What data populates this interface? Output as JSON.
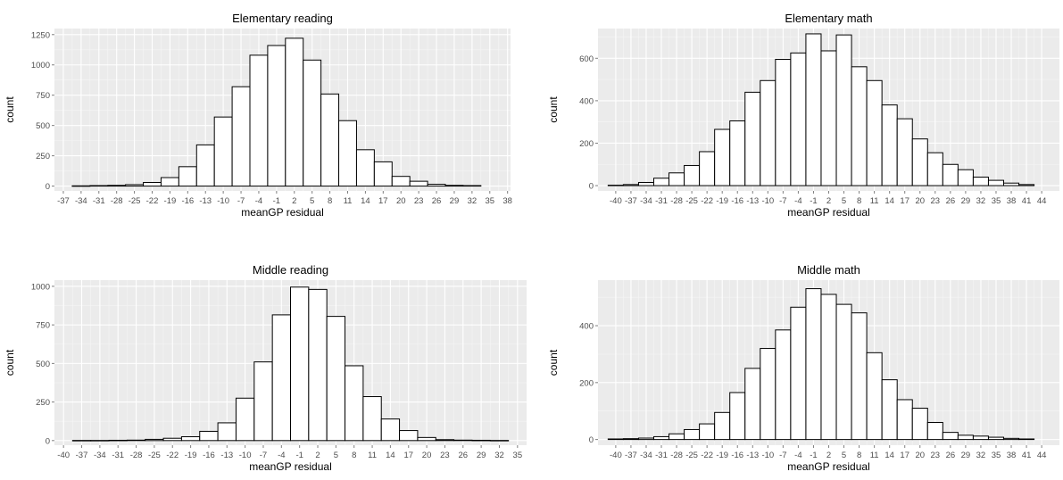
{
  "chart_data": [
    {
      "type": "bar",
      "title": "Elementary reading",
      "xlabel": "meanGP residual",
      "ylabel": "count",
      "xlim": [
        -38.5,
        38.5
      ],
      "ylim": [
        -40,
        1300
      ],
      "bin_width": 3,
      "yticks": [
        0,
        250,
        500,
        750,
        1000,
        1250
      ],
      "xticks": [
        -37,
        -34,
        -31,
        -28,
        -25,
        -22,
        -19,
        -16,
        -13,
        -10,
        -7,
        -4,
        -1,
        2,
        5,
        8,
        11,
        14,
        17,
        20,
        23,
        26,
        29,
        32,
        35,
        38
      ],
      "x": [
        -34,
        -31,
        -28,
        -25,
        -22,
        -19,
        -16,
        -13,
        -10,
        -7,
        -4,
        -1,
        2,
        5,
        8,
        11,
        14,
        17,
        20,
        23,
        26,
        29,
        32
      ],
      "values": [
        2,
        4,
        6,
        12,
        30,
        70,
        160,
        340,
        570,
        820,
        1080,
        1160,
        1220,
        1040,
        760,
        540,
        300,
        200,
        80,
        40,
        15,
        6,
        4
      ]
    },
    {
      "type": "bar",
      "title": "Elementary math",
      "xlabel": "meanGP residual",
      "ylabel": "count",
      "xlim": [
        -43.5,
        47.5
      ],
      "ylim": [
        -25,
        740
      ],
      "bin_width": 3,
      "yticks": [
        0,
        200,
        400,
        600
      ],
      "xticks": [
        -40,
        -37,
        -34,
        -31,
        -28,
        -25,
        -22,
        -19,
        -16,
        -13,
        -10,
        -7,
        -4,
        -1,
        2,
        5,
        8,
        11,
        14,
        17,
        20,
        23,
        26,
        29,
        32,
        35,
        38,
        41,
        44
      ],
      "x": [
        -40,
        -37,
        -34,
        -31,
        -28,
        -25,
        -22,
        -19,
        -16,
        -13,
        -10,
        -7,
        -4,
        -1,
        2,
        5,
        8,
        11,
        14,
        17,
        20,
        23,
        26,
        29,
        32,
        35,
        38,
        41
      ],
      "values": [
        2,
        5,
        15,
        35,
        60,
        95,
        160,
        265,
        305,
        440,
        495,
        595,
        625,
        715,
        635,
        710,
        560,
        495,
        380,
        315,
        220,
        155,
        100,
        75,
        40,
        25,
        12,
        5
      ]
    },
    {
      "type": "bar",
      "title": "Middle reading",
      "xlabel": "meanGP residual",
      "ylabel": "count",
      "xlim": [
        -41.5,
        36.5
      ],
      "ylim": [
        -30,
        1040
      ],
      "bin_width": 3,
      "yticks": [
        0,
        250,
        500,
        750,
        1000
      ],
      "xticks": [
        -40,
        -37,
        -34,
        -31,
        -28,
        -25,
        -22,
        -19,
        -16,
        -13,
        -10,
        -7,
        -4,
        -1,
        2,
        5,
        8,
        11,
        14,
        17,
        20,
        23,
        26,
        29,
        32,
        35
      ],
      "x": [
        -37,
        -34,
        -31,
        -28,
        -25,
        -22,
        -19,
        -16,
        -13,
        -10,
        -7,
        -4,
        -1,
        2,
        5,
        8,
        11,
        14,
        17,
        20,
        23,
        26,
        29,
        32
      ],
      "values": [
        1,
        1,
        2,
        3,
        8,
        15,
        25,
        60,
        115,
        275,
        510,
        815,
        995,
        980,
        805,
        485,
        285,
        140,
        65,
        20,
        6,
        3,
        2,
        1
      ]
    },
    {
      "type": "bar",
      "title": "Middle math",
      "xlabel": "meanGP residual",
      "ylabel": "count",
      "xlim": [
        -43.5,
        47.5
      ],
      "ylim": [
        -20,
        560
      ],
      "bin_width": 3,
      "yticks": [
        0,
        200,
        400
      ],
      "xticks": [
        -40,
        -37,
        -34,
        -31,
        -28,
        -25,
        -22,
        -19,
        -16,
        -13,
        -10,
        -7,
        -4,
        -1,
        2,
        5,
        8,
        11,
        14,
        17,
        20,
        23,
        26,
        29,
        32,
        35,
        38,
        41,
        44
      ],
      "x": [
        -40,
        -37,
        -34,
        -31,
        -28,
        -25,
        -22,
        -19,
        -16,
        -13,
        -10,
        -7,
        -4,
        -1,
        2,
        5,
        8,
        11,
        14,
        17,
        20,
        23,
        26,
        29,
        32,
        35,
        38,
        41
      ],
      "values": [
        2,
        3,
        5,
        10,
        20,
        35,
        55,
        95,
        165,
        250,
        320,
        385,
        465,
        530,
        510,
        475,
        445,
        305,
        210,
        140,
        110,
        60,
        25,
        15,
        12,
        8,
        4,
        2
      ]
    }
  ]
}
